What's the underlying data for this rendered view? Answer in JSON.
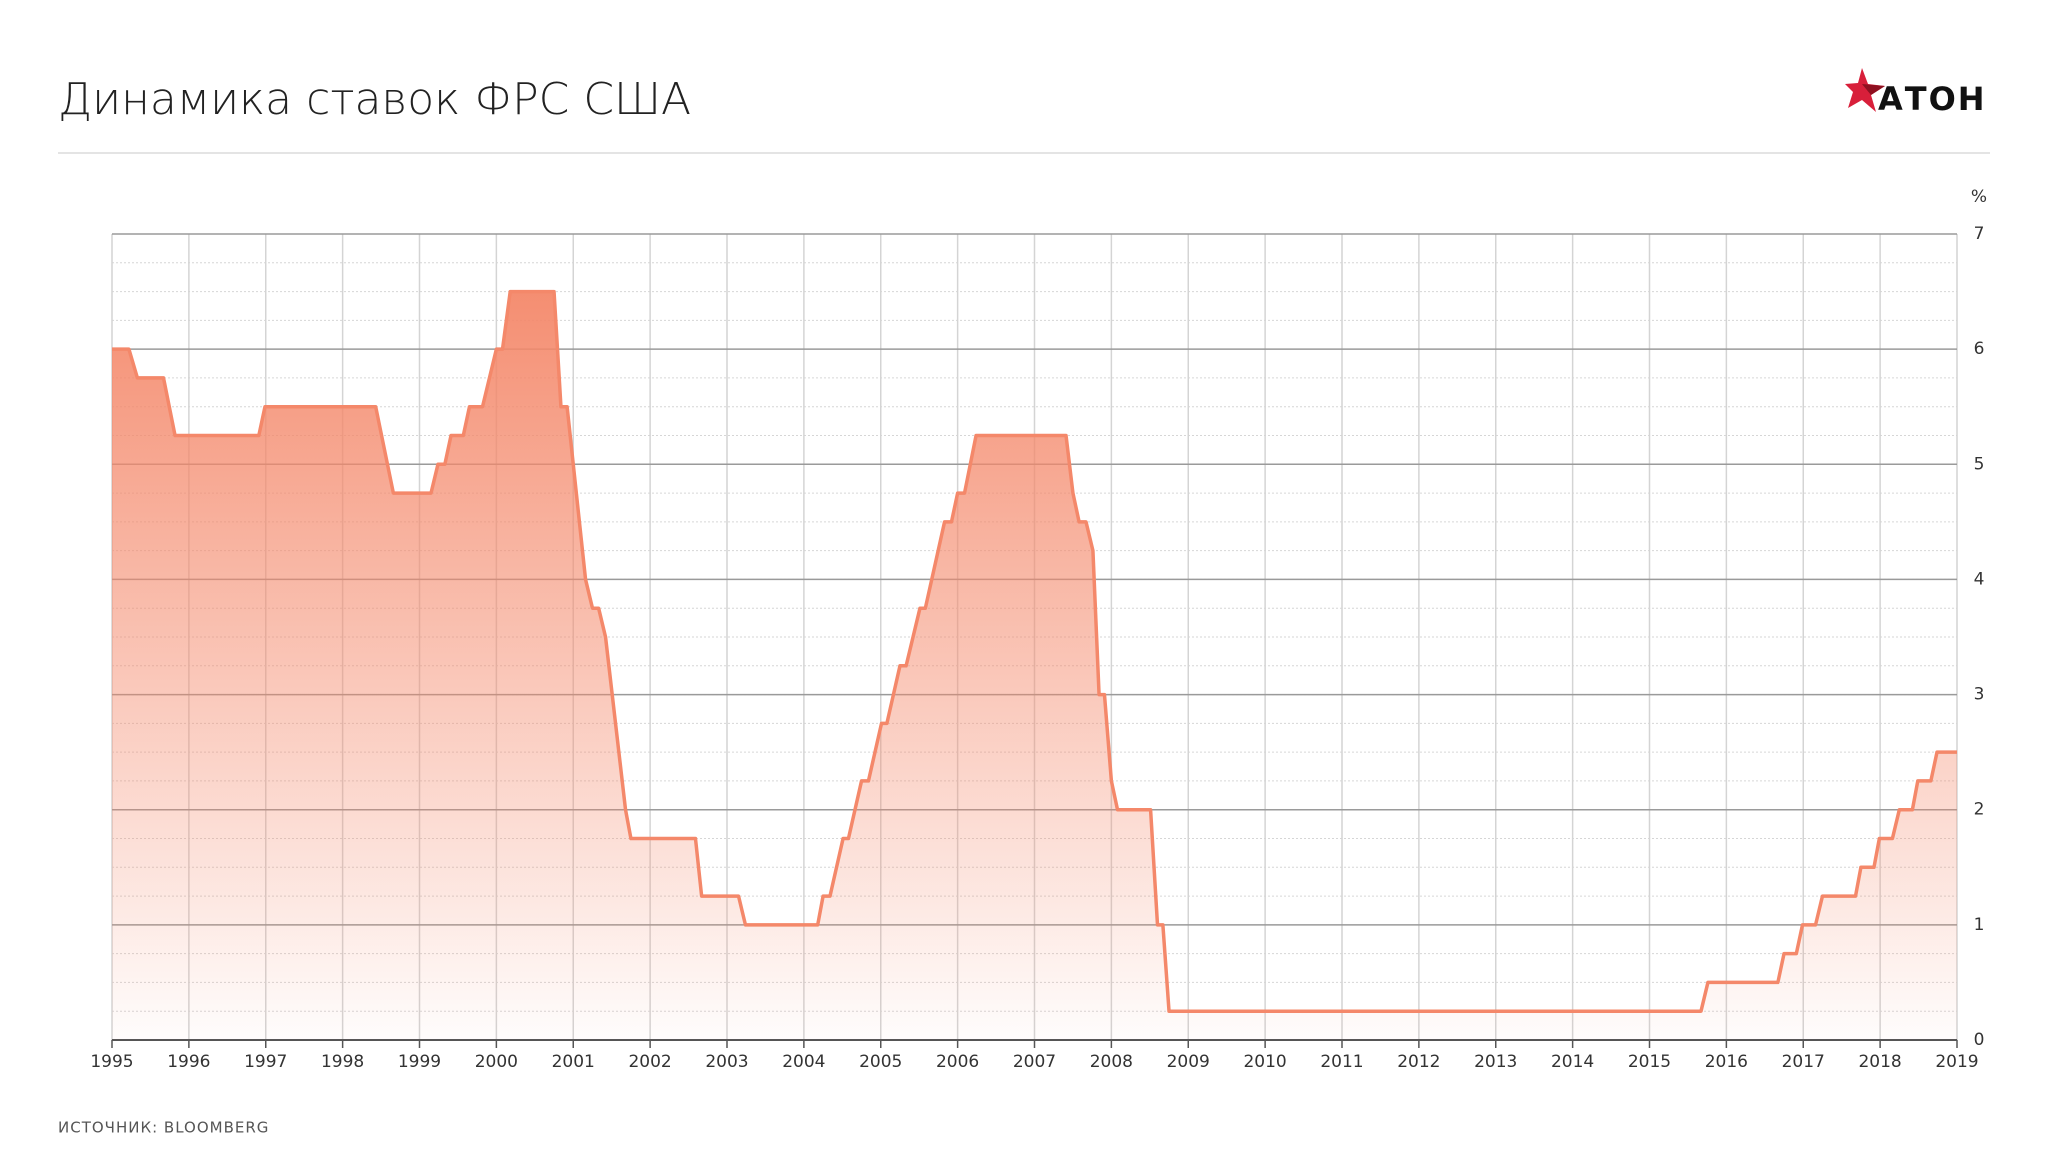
{
  "chart_data": {
    "type": "line",
    "title": "Динамика ставок ФРС США",
    "logo": "АТОН",
    "source": "ИСТОЧНИК: BLOOMBERG",
    "y_unit": "%",
    "color": "#f4886a",
    "area": true,
    "grid": true,
    "minor_grid_step": 0.25,
    "x": [
      1995.0,
      1995.22,
      1995.33,
      1995.67,
      1995.82,
      1996.91,
      1996.99,
      1998.43,
      1998.66,
      1999.15,
      1999.24,
      1999.33,
      1999.41,
      1999.57,
      1999.65,
      1999.82,
      2000.0,
      2000.08,
      2000.18,
      2000.75,
      2000.84,
      2000.92,
      2001.16,
      2001.25,
      2001.33,
      2001.42,
      2001.68,
      2001.75,
      2002.59,
      2002.67,
      2003.15,
      2003.24,
      2004.18,
      2004.25,
      2004.34,
      2004.51,
      2004.58,
      2004.75,
      2004.84,
      2005.01,
      2005.08,
      2005.25,
      2005.33,
      2005.51,
      2005.58,
      2005.83,
      2005.92,
      2006.0,
      2006.09,
      2006.24,
      2007.41,
      2007.5,
      2007.58,
      2007.67,
      2007.76,
      2007.84,
      2007.91,
      2008.0,
      2008.08,
      2008.51,
      2008.6,
      2008.67,
      2008.75,
      2015.67,
      2015.76,
      2016.67,
      2016.75,
      2016.91,
      2016.99,
      2017.16,
      2017.25,
      2017.68,
      2017.75,
      2017.92,
      2017.99,
      2018.16,
      2018.25,
      2018.42,
      2018.49,
      2018.66,
      2018.74,
      2019.0
    ],
    "values": [
      6,
      6,
      5.75,
      5.75,
      5.25,
      5.25,
      5.5,
      5.5,
      4.75,
      4.75,
      5,
      5,
      5.25,
      5.25,
      5.5,
      5.5,
      6,
      6,
      6.5,
      6.5,
      5.5,
      5.5,
      4,
      3.75,
      3.75,
      3.5,
      2,
      1.75,
      1.75,
      1.25,
      1.25,
      1,
      1,
      1.25,
      1.25,
      1.75,
      1.75,
      2.25,
      2.25,
      2.75,
      2.75,
      3.25,
      3.25,
      3.75,
      3.75,
      4.5,
      4.5,
      4.75,
      4.75,
      5.25,
      5.25,
      4.75,
      4.5,
      4.5,
      4.25,
      3,
      3,
      2.25,
      2,
      2,
      1,
      1,
      0.25,
      0.25,
      0.5,
      0.5,
      0.75,
      0.75,
      1,
      1,
      1.25,
      1.25,
      1.5,
      1.5,
      1.75,
      1.75,
      2,
      2,
      2.25,
      2.25,
      2.5,
      2.5
    ],
    "xlim": [
      1995,
      2019
    ],
    "xticks": [
      1995,
      1996,
      1997,
      1998,
      1999,
      2000,
      2001,
      2002,
      2003,
      2004,
      2005,
      2006,
      2007,
      2008,
      2009,
      2010,
      2011,
      2012,
      2013,
      2014,
      2015,
      2016,
      2017,
      2018,
      2019
    ],
    "ylim": [
      0,
      7
    ],
    "yticks": [
      0,
      1,
      2,
      3,
      4,
      5,
      6,
      7
    ]
  }
}
